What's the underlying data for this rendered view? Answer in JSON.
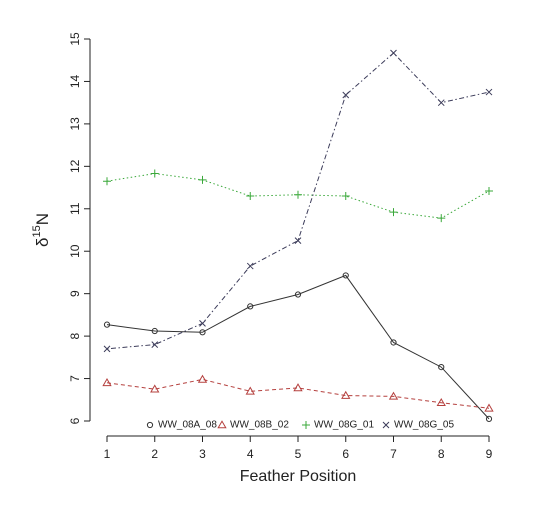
{
  "chart_data": {
    "type": "line",
    "x_label": "Feather Position",
    "y_label_parts": [
      "δ",
      "15",
      "N"
    ],
    "x": [
      1,
      2,
      3,
      4,
      5,
      6,
      7,
      8,
      9
    ],
    "xlim": [
      1,
      9
    ],
    "xticks": [
      1,
      2,
      3,
      4,
      5,
      6,
      7,
      8,
      9
    ],
    "ylim": [
      6,
      15
    ],
    "yticks": [
      6,
      7,
      8,
      9,
      10,
      11,
      12,
      13,
      14,
      15
    ],
    "legend": "bottom",
    "series": [
      {
        "name": "WW_08A_08",
        "color": "#333333",
        "dash": "solid",
        "marker": "circle",
        "values": [
          8.27,
          8.12,
          8.09,
          8.7,
          8.98,
          9.43,
          7.85,
          7.27,
          6.05
        ]
      },
      {
        "name": "WW_08B_02",
        "color": "#b5403e",
        "dash": "dashed",
        "marker": "triangle",
        "values": [
          6.9,
          6.75,
          6.98,
          6.7,
          6.78,
          6.6,
          6.58,
          6.43,
          6.3
        ]
      },
      {
        "name": "WW_08G_01",
        "color": "#3aa83a",
        "dash": "dotted",
        "marker": "plus",
        "values": [
          11.65,
          11.83,
          11.68,
          11.3,
          11.33,
          11.3,
          10.92,
          10.78,
          11.42
        ]
      },
      {
        "name": "WW_08G_05",
        "color": "#3c3c5a",
        "dash": "dotdash",
        "marker": "x",
        "values": [
          7.7,
          7.8,
          8.3,
          9.65,
          10.25,
          13.68,
          14.67,
          13.5,
          13.75
        ]
      }
    ]
  }
}
